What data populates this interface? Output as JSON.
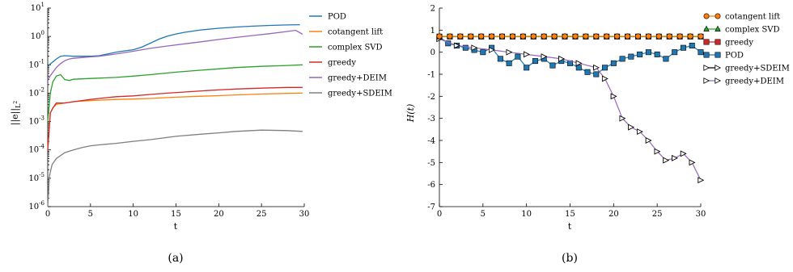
{
  "chart_data": [
    {
      "type": "line",
      "panel": "(a)",
      "xlabel": "t",
      "ylabel": "||e||_{L^2}",
      "xlim": [
        0,
        30
      ],
      "ylim": [
        1e-06,
        10
      ],
      "yscale": "log",
      "xticks": [
        "0",
        "5",
        "10",
        "15",
        "20",
        "25",
        "30"
      ],
      "yticks": [
        "10^-6",
        "10^-5",
        "10^-4",
        "10^-3",
        "10^-2",
        "10^-1",
        "10^0",
        "10^1"
      ],
      "legend_position": "right",
      "series": [
        {
          "name": "POD",
          "color": "#1f77b4",
          "x": [
            0,
            0.5,
            1,
            1.5,
            2,
            3,
            4,
            5,
            6,
            7,
            8,
            9,
            10,
            11,
            12,
            13,
            14,
            15,
            16,
            18,
            20,
            22,
            24,
            26,
            28,
            29.5
          ],
          "y": [
            0.09,
            0.12,
            0.16,
            0.2,
            0.21,
            0.2,
            0.2,
            0.2,
            0.21,
            0.24,
            0.28,
            0.31,
            0.34,
            0.42,
            0.58,
            0.8,
            1.02,
            1.22,
            1.4,
            1.7,
            1.95,
            2.15,
            2.3,
            2.45,
            2.55,
            2.6
          ]
        },
        {
          "name": "cotangent lift",
          "color": "#ff7f0e",
          "x": [
            0,
            0.3,
            0.6,
            1,
            2,
            3,
            5,
            8,
            10,
            12,
            15,
            18,
            20,
            22,
            25,
            28,
            29.8
          ],
          "y": [
            0.0001,
            0.002,
            0.003,
            0.004,
            0.0045,
            0.005,
            0.0055,
            0.006,
            0.0062,
            0.0065,
            0.0072,
            0.0078,
            0.0082,
            0.0087,
            0.0093,
            0.0098,
            0.01
          ]
        },
        {
          "name": "complex SVD",
          "color": "#2ca02c",
          "x": [
            0,
            0.3,
            0.6,
            1,
            1.5,
            2,
            2.5,
            3,
            4,
            5,
            6,
            8,
            10,
            12,
            15,
            18,
            20,
            22,
            25,
            28,
            29.8
          ],
          "y": [
            0.001,
            0.01,
            0.025,
            0.04,
            0.045,
            0.03,
            0.028,
            0.031,
            0.032,
            0.033,
            0.034,
            0.036,
            0.04,
            0.045,
            0.055,
            0.065,
            0.072,
            0.08,
            0.088,
            0.095,
            0.1
          ]
        },
        {
          "name": "greedy",
          "color": "#d62728",
          "x": [
            0,
            0.3,
            0.6,
            1,
            2,
            3,
            4,
            5,
            6,
            8,
            10,
            12,
            14,
            16,
            18,
            20,
            22,
            25,
            28,
            29.8
          ],
          "y": [
            0.0001,
            0.002,
            0.003,
            0.0045,
            0.0045,
            0.005,
            0.0055,
            0.006,
            0.0065,
            0.0075,
            0.008,
            0.009,
            0.01,
            0.011,
            0.012,
            0.013,
            0.014,
            0.015,
            0.016,
            0.016
          ]
        },
        {
          "name": "greedy+DEIM",
          "color": "#9467bd",
          "x": [
            0,
            0.5,
            1,
            1.5,
            2,
            2.5,
            3,
            4,
            5,
            6,
            8,
            10,
            12,
            14,
            16,
            18,
            20,
            22,
            24,
            26,
            28,
            29,
            29.8
          ],
          "y": [
            0.03,
            0.05,
            0.08,
            0.11,
            0.14,
            0.16,
            0.17,
            0.18,
            0.19,
            0.2,
            0.24,
            0.3,
            0.38,
            0.46,
            0.55,
            0.65,
            0.78,
            0.92,
            1.08,
            1.25,
            1.5,
            1.65,
            1.2
          ]
        },
        {
          "name": "greedy+SDEIM",
          "color": "#7f7f7f",
          "x": [
            0,
            0.2,
            0.5,
            1,
            2,
            3,
            4,
            5,
            6,
            8,
            10,
            12,
            15,
            18,
            20,
            22,
            25,
            28,
            29.8
          ],
          "y": [
            1e-06,
            1.2e-05,
            3e-05,
            5e-05,
            8e-05,
            0.0001,
            0.00012,
            0.00014,
            0.00015,
            0.00017,
            0.0002,
            0.00023,
            0.0003,
            0.00036,
            0.0004,
            0.00045,
            0.0005,
            0.00048,
            0.00045
          ]
        }
      ]
    },
    {
      "type": "line",
      "panel": "(b)",
      "xlabel": "t",
      "ylabel": "H(t)",
      "xlim": [
        0,
        30
      ],
      "ylim": [
        -7,
        2
      ],
      "xticks": [
        "0",
        "5",
        "10",
        "15",
        "20",
        "25",
        "30"
      ],
      "yticks": [
        "-7",
        "-6",
        "-5",
        "-4",
        "-3",
        "-2",
        "-1",
        "0",
        "1",
        "2"
      ],
      "legend_position": "top-right",
      "series": [
        {
          "name": "cotangent lift",
          "color": "#ff7f0e",
          "marker": "circle",
          "x": [
            0,
            30
          ],
          "y": [
            0.72,
            0.72
          ]
        },
        {
          "name": "complex SVD",
          "color": "#2ca02c",
          "marker": "triangle",
          "x": [
            0,
            30
          ],
          "y": [
            0.7,
            0.7
          ]
        },
        {
          "name": "greedy",
          "color": "#d62728",
          "marker": "square",
          "x": [
            0,
            30
          ],
          "y": [
            0.71,
            0.71
          ]
        },
        {
          "name": "POD",
          "color": "#1f77b4",
          "marker": "square",
          "x": [
            0,
            1,
            2,
            3,
            4,
            5,
            6,
            7,
            8,
            9,
            10,
            11,
            12,
            13,
            14,
            15,
            16,
            17,
            18,
            19,
            20,
            21,
            22,
            23,
            24,
            25,
            26,
            27,
            28,
            29,
            30
          ],
          "y": [
            0.7,
            0.4,
            0.3,
            0.2,
            0.1,
            0.0,
            0.2,
            -0.3,
            -0.5,
            -0.2,
            -0.7,
            -0.4,
            -0.3,
            -0.6,
            -0.4,
            -0.5,
            -0.7,
            -0.9,
            -1.0,
            -0.7,
            -0.5,
            -0.3,
            -0.2,
            -0.1,
            0.0,
            -0.1,
            -0.3,
            0.0,
            0.2,
            0.3,
            0.0
          ]
        },
        {
          "name": "greedy+SDEIM",
          "color": "#000000",
          "marker": "triangle-right",
          "x": [
            0,
            2,
            4,
            6,
            8,
            10,
            12,
            14,
            16,
            18,
            19,
            20,
            21,
            22,
            23,
            24,
            25,
            26,
            27,
            28,
            29,
            30
          ],
          "y": [
            0.6,
            0.3,
            0.2,
            0.1,
            0.0,
            -0.1,
            -0.2,
            -0.3,
            -0.5,
            -0.7,
            -1.2,
            -2.0,
            -3.0,
            -3.4,
            -3.6,
            -4.0,
            -4.5,
            -4.9,
            -4.8,
            -4.6,
            -5.0,
            -5.8
          ]
        },
        {
          "name": "greedy+DEIM",
          "color": "#9467bd",
          "marker": "triangle-right",
          "x": [
            0,
            2,
            4,
            6,
            8,
            10,
            12,
            14,
            16,
            18,
            19,
            20,
            21,
            22,
            23,
            24,
            25,
            26,
            27,
            28,
            29,
            30
          ],
          "y": [
            0.6,
            0.3,
            0.2,
            0.1,
            0.0,
            -0.1,
            -0.2,
            -0.3,
            -0.5,
            -0.7,
            -1.2,
            -2.0,
            -3.0,
            -3.4,
            -3.6,
            -4.0,
            -4.5,
            -4.9,
            -4.8,
            -4.6,
            -5.0,
            -5.8
          ]
        }
      ]
    }
  ],
  "legend_a": [
    "POD",
    "cotangent lift",
    "complex SVD",
    "greedy",
    "greedy+DEIM",
    "greedy+SDEIM"
  ],
  "legend_b": [
    "cotangent lift",
    "complex SVD",
    "greedy",
    "POD",
    "greedy+SDEIM",
    "greedy+DEIM"
  ],
  "captions": {
    "a": "(a)",
    "b": "(b)"
  },
  "axis_labels": {
    "a_x": "t",
    "b_x": "t",
    "b_y": "H(t)"
  }
}
